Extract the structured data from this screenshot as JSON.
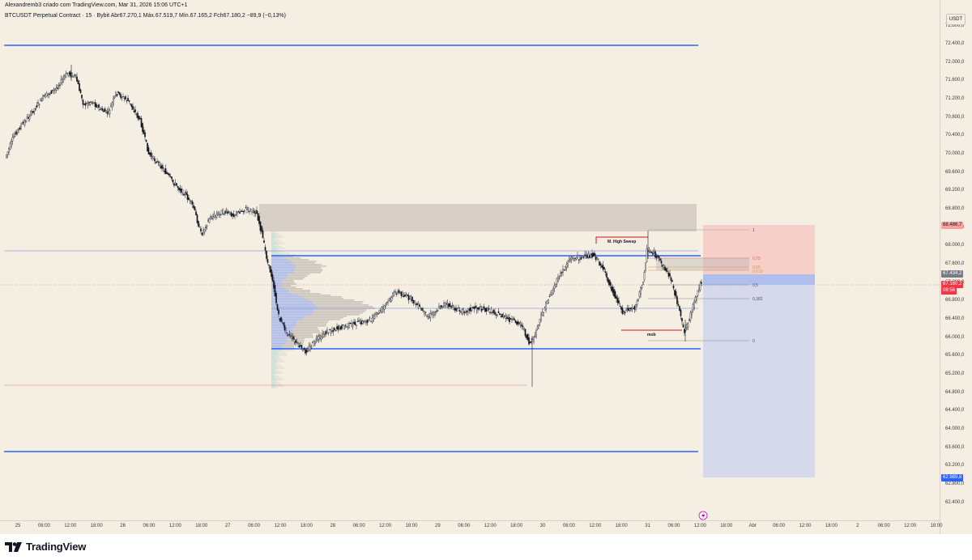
{
  "header": {
    "attribution": "Alexandremb3 criado com TradingView.com, Mar 31, 2026 15:06 UTC+1",
    "symbol_line": "BTCUSDT Perpetual Contract · 15 · Bybit  Abr67.270,1  Máx.67.519,7  Mín.67.165,2  Fch67.180,2  −89,9 (−0,13%)"
  },
  "price_axis": {
    "currency": "USDT",
    "ticks": [
      "72.800,0",
      "72.400,0",
      "72.000,0",
      "71.600,0",
      "71.200,0",
      "70.800,0",
      "70.400,0",
      "70.000,0",
      "69.600,0",
      "69.200,0",
      "68.800,0",
      "68.400,0",
      "68.000,0",
      "67.600,0",
      "67.200,0",
      "66.800,0",
      "66.400,0",
      "66.000,0",
      "65.600,0",
      "65.200,0",
      "64.800,0",
      "64.400,0",
      "64.000,0",
      "63.600,0",
      "63.200,0",
      "62.800,0",
      "62.400,0"
    ],
    "badges": {
      "stop": "68.486,7",
      "entry": "67.434,2",
      "last_price": "67.180,2",
      "countdown": "08:56",
      "target": "62.989,8"
    },
    "colors": {
      "stop": "#f7a1a1",
      "entry": "#787b86",
      "last": "#f23645",
      "target": "#2962ff"
    }
  },
  "time_axis": {
    "labels": [
      "25",
      "06:00",
      "12:00",
      "18:00",
      "26",
      "06:00",
      "12:00",
      "18:00",
      "27",
      "06:00",
      "12:00",
      "18:00",
      "28",
      "06:00",
      "12:00",
      "18:00",
      "29",
      "06:00",
      "12:00",
      "18:00",
      "30",
      "06:00",
      "12:00",
      "18:00",
      "31",
      "06:00",
      "12:00",
      "18:00",
      "Abr",
      "06:00",
      "12:00",
      "18:00",
      "2",
      "06:00",
      "12:00",
      "18:00"
    ]
  },
  "annotations": {
    "high_sweep": "M. High Sweep",
    "mob": "mob",
    "fib_levels": [
      "1",
      "0,75",
      "0,65",
      "0,618",
      "0,5",
      "0,382",
      "0"
    ]
  },
  "footer": {
    "logo_text": "TradingView"
  }
}
